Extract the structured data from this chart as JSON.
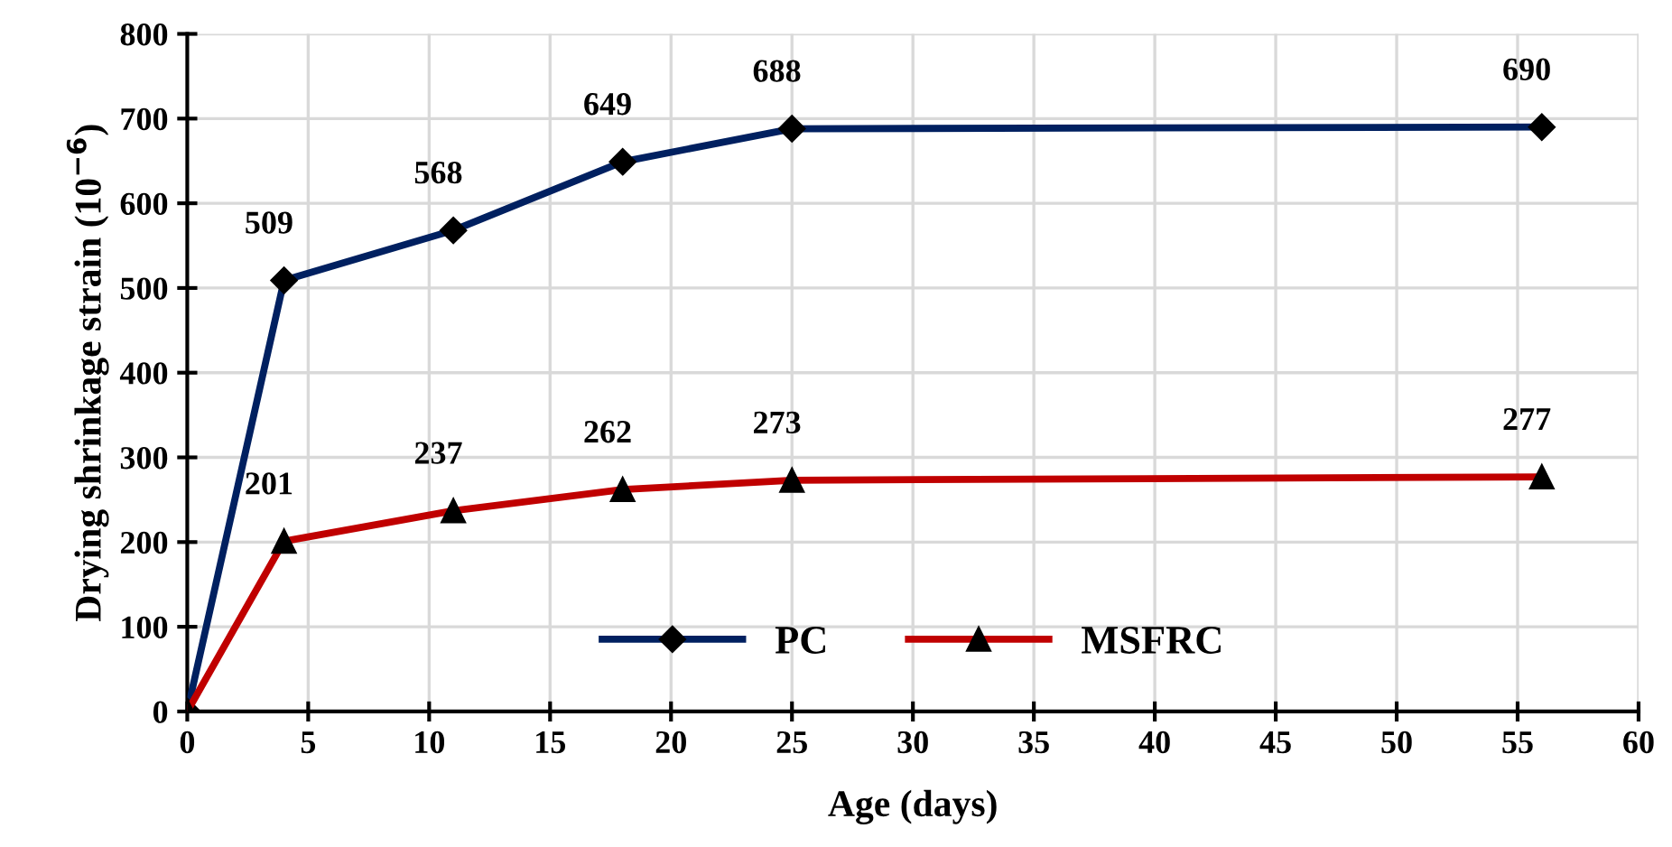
{
  "chart_data": {
    "type": "line",
    "xlabel": "Age (days)",
    "ylabel": "Drying shrinkage strain (10$^{−6}$)",
    "x": [
      0,
      4,
      11,
      18,
      25,
      56
    ],
    "series": [
      {
        "name": "PC",
        "color": "#002060",
        "marker": "diamond",
        "values": [
          0,
          509,
          568,
          649,
          688,
          690
        ],
        "value_labels": [
          null,
          "509",
          "568",
          "649",
          "688",
          "690"
        ]
      },
      {
        "name": "MSFRC",
        "color": "#c00000",
        "marker": "triangle",
        "values": [
          0,
          201,
          237,
          262,
          273,
          277
        ],
        "value_labels": [
          null,
          "201",
          "237",
          "262",
          "273",
          "277"
        ]
      }
    ],
    "xlim": [
      0,
      60
    ],
    "xticks": [
      0,
      5,
      10,
      15,
      20,
      25,
      30,
      35,
      40,
      45,
      50,
      55,
      60
    ],
    "ylim": [
      0,
      800
    ],
    "yticks": [
      0,
      100,
      200,
      300,
      400,
      500,
      600,
      700,
      800
    ],
    "grid": true,
    "legend": "bottom",
    "line_style": "solid"
  }
}
